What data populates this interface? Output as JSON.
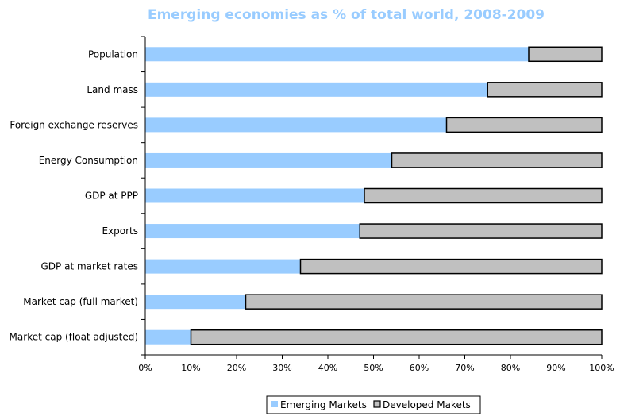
{
  "chart_data": {
    "type": "bar",
    "orientation": "horizontal",
    "stacked": true,
    "title": "Emerging economies as % of total world, 2008-2009",
    "xlabel": "",
    "ylabel": "",
    "categories": [
      "Population",
      "Land mass",
      "Foreign exchange reserves",
      "Energy Consumption",
      "GDP at PPP",
      "Exports",
      "GDP at market rates",
      "Market cap (full market)",
      "Market cap (float adjusted)"
    ],
    "series": [
      {
        "name": "Emerging Markets",
        "values": [
          84,
          75,
          66,
          54,
          48,
          47,
          34,
          22,
          10
        ],
        "color": "#99ccff"
      },
      {
        "name": "Developed Makets",
        "values": [
          16,
          25,
          34,
          46,
          52,
          53,
          66,
          78,
          90
        ],
        "color": "#c0c0c0"
      }
    ],
    "x_ticks": [
      "0%",
      "10%",
      "20%",
      "30%",
      "40%",
      "50%",
      "60%",
      "70%",
      "80%",
      "90%",
      "100%"
    ],
    "xlim": [
      0,
      100
    ],
    "grid": false,
    "legend_position": "bottom-right",
    "colors": {
      "title": "#99ccff",
      "emerging": "#99ccff",
      "developed": "#c0c0c0",
      "axis": "#000000"
    }
  }
}
